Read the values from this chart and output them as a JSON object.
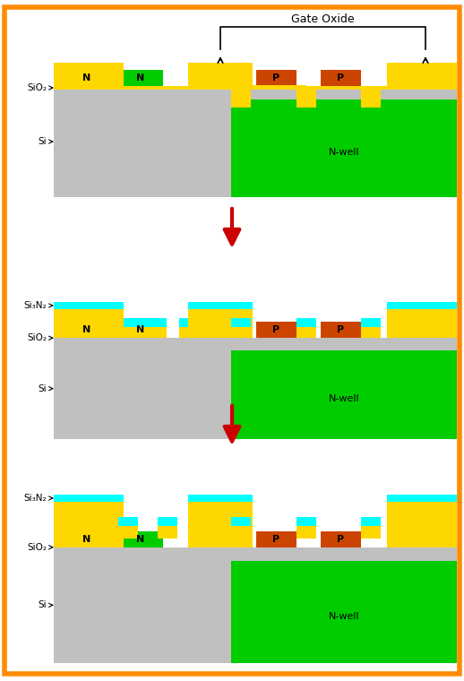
{
  "bg_color": "#ffffff",
  "border_color": "#FF8C00",
  "border_lw": 4,
  "colors": {
    "gold": "#FFD700",
    "cyan": "#00FFFF",
    "green": "#00CC00",
    "orange_red": "#CC4400",
    "gray": "#C0C0C0",
    "red_arrow": "#CC0000",
    "black": "#000000"
  },
  "diagram1": {
    "label_left": "SiO₂",
    "label_si": "Si",
    "gate_oxide_label": "Gate Oxide",
    "nwell_label": "N-well"
  },
  "diagram2": {
    "label_si3n2": "Si₃N₂",
    "label_sio2": "SiO₂",
    "label_si": "Si",
    "nwell_label": "N-well"
  },
  "diagram3": {
    "label_si3n2": "Si₃N₂",
    "label_sio2": "SiO₂",
    "label_si": "Si",
    "nwell_label": "N-well"
  }
}
